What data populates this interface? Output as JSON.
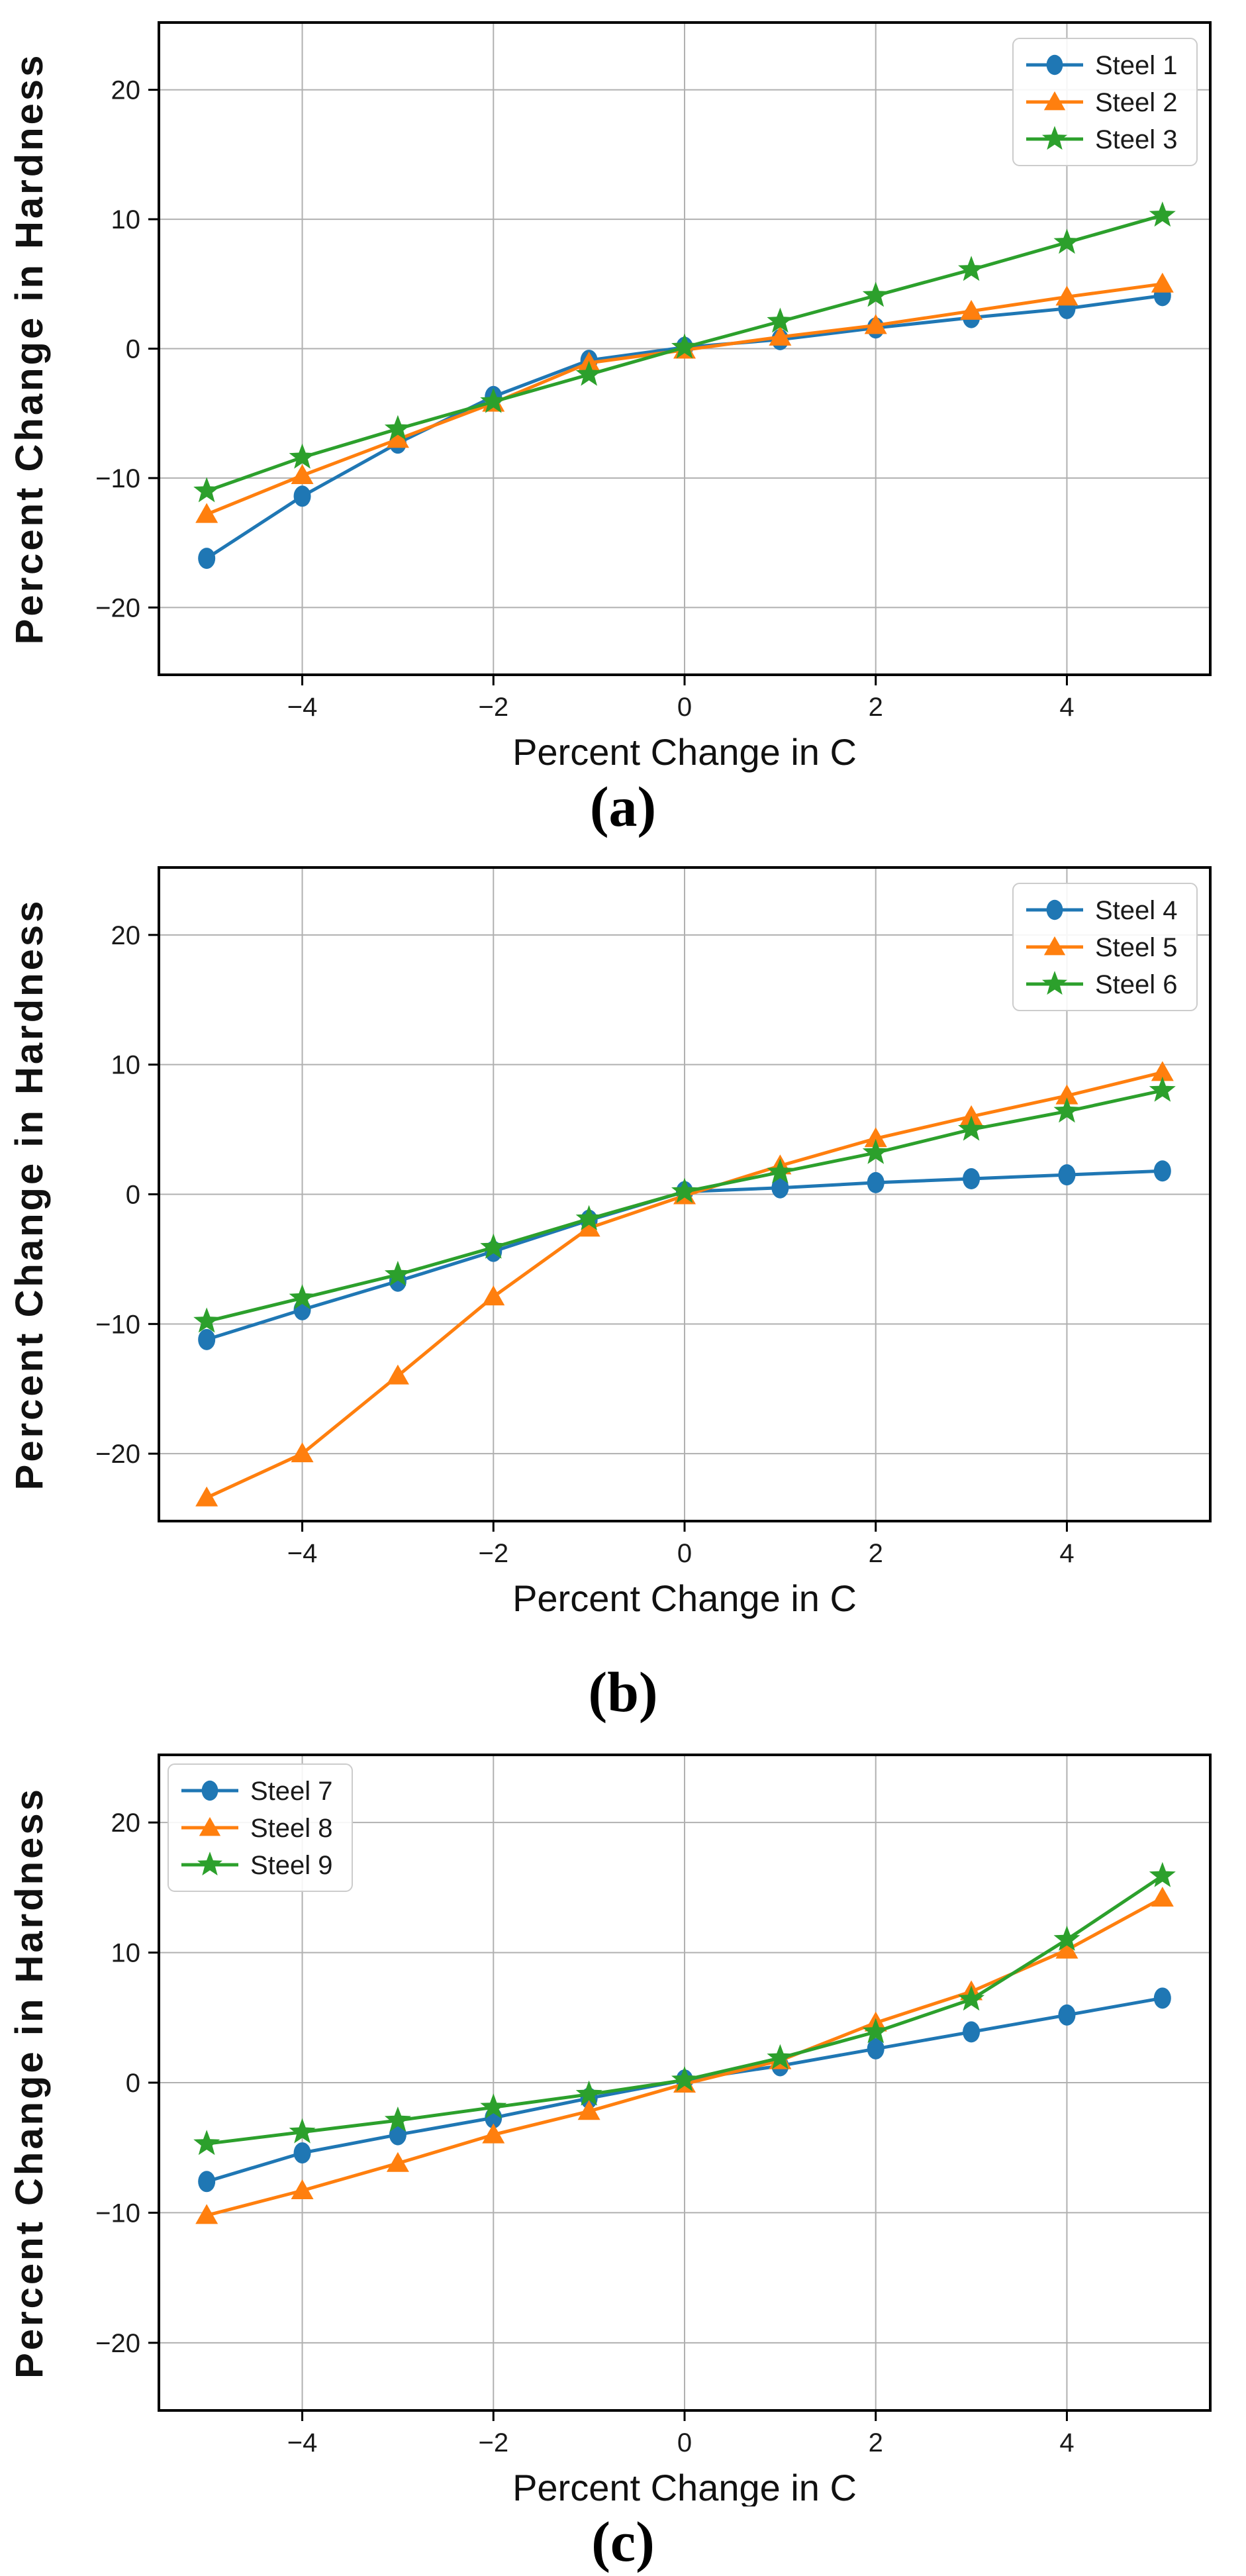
{
  "figure": {
    "background": "#ffffff",
    "xlabel": "Percent Change in C",
    "ylabel": "Percent Change in Hardness"
  },
  "colors": {
    "series_blue": "#1f77b4",
    "series_orange": "#ff7f0e",
    "series_green": "#2ca02c",
    "grid": "#b0b0b0",
    "spine": "#000000",
    "text": "#1a1a1a",
    "legend_border": "#cccccc"
  },
  "chart_data": [
    {
      "type": "line",
      "caption": "(a)",
      "xlabel": "Percent Change in C",
      "ylabel": "Percent Change in Hardness",
      "xlim": [
        -5.5,
        5.5
      ],
      "ylim": [
        -25.2,
        25.2
      ],
      "xticks": [
        -4,
        -2,
        0,
        2,
        4
      ],
      "yticks": [
        -20,
        -10,
        0,
        10,
        20
      ],
      "grid": true,
      "legend_position": "upper-right",
      "x": [
        -5,
        -4,
        -3,
        -2,
        -1,
        0,
        1,
        2,
        3,
        4,
        5
      ],
      "series": [
        {
          "name": "Steel 1",
          "color": "#1f77b4",
          "marker": "circle",
          "values": [
            -16.2,
            -11.4,
            -7.3,
            -3.7,
            -0.9,
            0.1,
            0.7,
            1.6,
            2.4,
            3.1,
            4.1
          ]
        },
        {
          "name": "Steel 2",
          "color": "#ff7f0e",
          "marker": "triangle",
          "values": [
            -12.8,
            -9.8,
            -7.0,
            -4.2,
            -1.1,
            -0.1,
            0.9,
            1.8,
            2.9,
            4.0,
            5.0
          ]
        },
        {
          "name": "Steel 3",
          "color": "#2ca02c",
          "marker": "star",
          "values": [
            -11.0,
            -8.4,
            -6.2,
            -4.1,
            -2.0,
            0.1,
            2.1,
            4.1,
            6.1,
            8.2,
            10.3
          ]
        }
      ]
    },
    {
      "type": "line",
      "caption": "(b)",
      "xlabel": "Percent Change in C",
      "ylabel": "Percent Change in Hardness",
      "xlim": [
        -5.5,
        5.5
      ],
      "ylim": [
        -25.2,
        25.2
      ],
      "xticks": [
        -4,
        -2,
        0,
        2,
        4
      ],
      "yticks": [
        -20,
        -10,
        0,
        10,
        20
      ],
      "grid": true,
      "legend_position": "upper-right",
      "x": [
        -5,
        -4,
        -3,
        -2,
        -1,
        0,
        1,
        2,
        3,
        4,
        5
      ],
      "series": [
        {
          "name": "Steel 4",
          "color": "#1f77b4",
          "marker": "circle",
          "values": [
            -11.2,
            -8.9,
            -6.7,
            -4.4,
            -2.0,
            0.2,
            0.5,
            0.9,
            1.2,
            1.5,
            1.8
          ]
        },
        {
          "name": "Steel 5",
          "color": "#ff7f0e",
          "marker": "triangle",
          "values": [
            -23.4,
            -20.0,
            -14.0,
            -7.9,
            -2.6,
            -0.1,
            2.2,
            4.3,
            6.0,
            7.6,
            9.4
          ]
        },
        {
          "name": "Steel 6",
          "color": "#2ca02c",
          "marker": "star",
          "values": [
            -9.8,
            -8.0,
            -6.2,
            -4.1,
            -1.9,
            0.2,
            1.7,
            3.2,
            5.0,
            6.4,
            8.0
          ]
        }
      ]
    },
    {
      "type": "line",
      "caption": "(c)",
      "xlabel": "Percent Change in C",
      "ylabel": "Percent Change in Hardness",
      "xlim": [
        -5.5,
        5.5
      ],
      "ylim": [
        -25.2,
        25.2
      ],
      "xticks": [
        -4,
        -2,
        0,
        2,
        4
      ],
      "yticks": [
        -20,
        -10,
        0,
        10,
        20
      ],
      "grid": true,
      "legend_position": "upper-left",
      "x": [
        -5,
        -4,
        -3,
        -2,
        -1,
        0,
        1,
        2,
        3,
        4,
        5
      ],
      "series": [
        {
          "name": "Steel 7",
          "color": "#1f77b4",
          "marker": "circle",
          "values": [
            -7.6,
            -5.4,
            -4.0,
            -2.7,
            -1.2,
            0.2,
            1.3,
            2.6,
            3.9,
            5.2,
            6.5
          ]
        },
        {
          "name": "Steel 8",
          "color": "#ff7f0e",
          "marker": "triangle",
          "values": [
            -10.2,
            -8.3,
            -6.2,
            -4.0,
            -2.2,
            -0.1,
            1.7,
            4.6,
            7.0,
            10.2,
            14.2
          ]
        },
        {
          "name": "Steel 9",
          "color": "#2ca02c",
          "marker": "star",
          "values": [
            -4.7,
            -3.8,
            -2.9,
            -1.9,
            -0.9,
            0.2,
            1.9,
            3.9,
            6.4,
            11.0,
            15.9
          ]
        }
      ]
    }
  ]
}
